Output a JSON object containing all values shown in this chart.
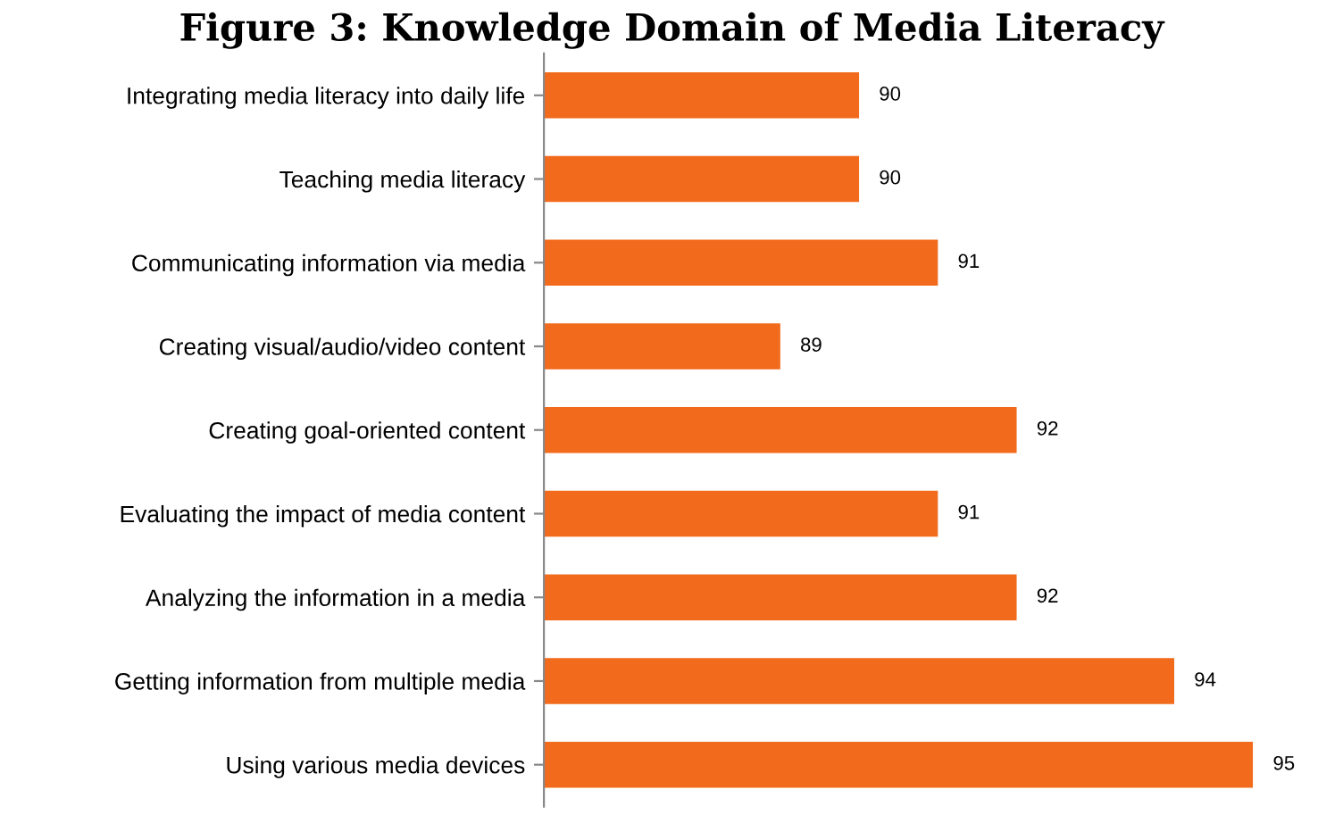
{
  "chart_data": {
    "type": "bar",
    "orientation": "horizontal",
    "title": "Figure 3: Knowledge Domain of Media Literacy",
    "categories": [
      "Integrating media literacy into daily life",
      "Teaching media literacy",
      "Communicating information via media",
      "Creating visual/audio/video content",
      "Creating goal-oriented content",
      "Evaluating the impact of media content",
      "Analyzing the information in a media",
      "Getting information from multiple media",
      "Using various media devices"
    ],
    "values": [
      90,
      90,
      91,
      89,
      92,
      91,
      92,
      94,
      95
    ],
    "color": "#f26a1b",
    "xlim": [
      86,
      95
    ],
    "data_labels": true,
    "grid": false,
    "tick_labels": "y"
  }
}
